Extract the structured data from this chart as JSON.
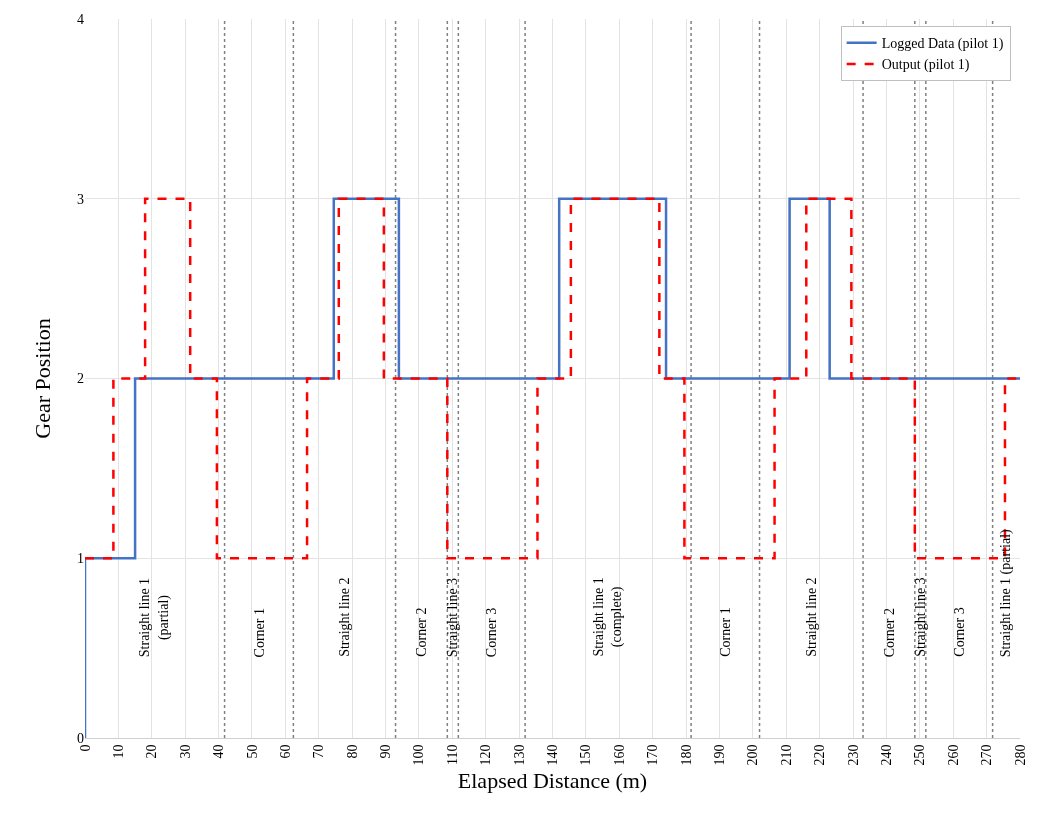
{
  "chart_data": {
    "type": "step",
    "xlabel": "Elapsed Distance (m)",
    "ylabel": "Gear Position",
    "xlim": [
      0,
      280
    ],
    "xticks": [
      0,
      10,
      20,
      30,
      40,
      50,
      60,
      70,
      80,
      90,
      100,
      110,
      120,
      130,
      140,
      150,
      160,
      170,
      180,
      190,
      200,
      210,
      220,
      230,
      240,
      250,
      260,
      270,
      280
    ],
    "ylim": [
      0,
      4
    ],
    "yticks": [
      0,
      1,
      2,
      3,
      4
    ],
    "grid": true,
    "legend": "top right",
    "marker": "none",
    "series": [
      {
        "name": "Logged Data (pilot 1)",
        "color": "#4472c4",
        "line_style": "solid",
        "x": [
          0,
          0,
          15,
          74.5,
          94,
          142,
          174,
          211,
          223,
          280
        ],
        "values": [
          0,
          1,
          2,
          3,
          2,
          3,
          2,
          3,
          2,
          2
        ]
      },
      {
        "name": "Output (pilot 1)",
        "color": "#ff0000",
        "line_style": "dashed",
        "x": [
          0,
          8.5,
          18,
          31.5,
          39.5,
          66.5,
          76,
          89.5,
          108.5,
          135.5,
          145.5,
          172,
          179.5,
          206.5,
          216,
          229.5,
          248.5,
          275.5,
          280
        ],
        "values": [
          1,
          2,
          3,
          2,
          1,
          2,
          3,
          2,
          1,
          2,
          3,
          2,
          1,
          2,
          3,
          2,
          1,
          2,
          2
        ]
      }
    ],
    "ref_lines": [
      {
        "axis": "x",
        "value": 41.8,
        "color": "#808080",
        "line_style": "dotted"
      },
      {
        "axis": "x",
        "value": 62.4,
        "color": "#808080",
        "line_style": "dotted"
      },
      {
        "axis": "x",
        "value": 93,
        "color": "#808080",
        "line_style": "dotted"
      },
      {
        "axis": "x",
        "value": 108.5,
        "color": "#808080",
        "line_style": "dotted"
      },
      {
        "axis": "x",
        "value": 111.8,
        "color": "#808080",
        "line_style": "dotted"
      },
      {
        "axis": "x",
        "value": 131.8,
        "color": "#808080",
        "line_style": "dotted"
      },
      {
        "axis": "x",
        "value": 181.5,
        "color": "#808080",
        "line_style": "dotted"
      },
      {
        "axis": "x",
        "value": 202,
        "color": "#808080",
        "line_style": "dotted"
      },
      {
        "axis": "x",
        "value": 233,
        "color": "#808080",
        "line_style": "dotted"
      },
      {
        "axis": "x",
        "value": 248.5,
        "color": "#808080",
        "line_style": "dotted"
      },
      {
        "axis": "x",
        "value": 251.8,
        "color": "#808080",
        "line_style": "dotted"
      },
      {
        "axis": "x",
        "value": 271.8,
        "color": "#808080",
        "line_style": "dotted"
      }
    ],
    "annotations": [
      "Straight line 1\n(partial)",
      "Corner 1",
      "Straight line 2",
      "Corner 2",
      "Straight line 3",
      "Corner 3",
      "Straight line 1\n(complete)",
      "Corner 1",
      "Straight line 2",
      "Corner 2",
      "Straight line 3",
      "Corner 3",
      "Straight line 1 (partial)"
    ]
  }
}
